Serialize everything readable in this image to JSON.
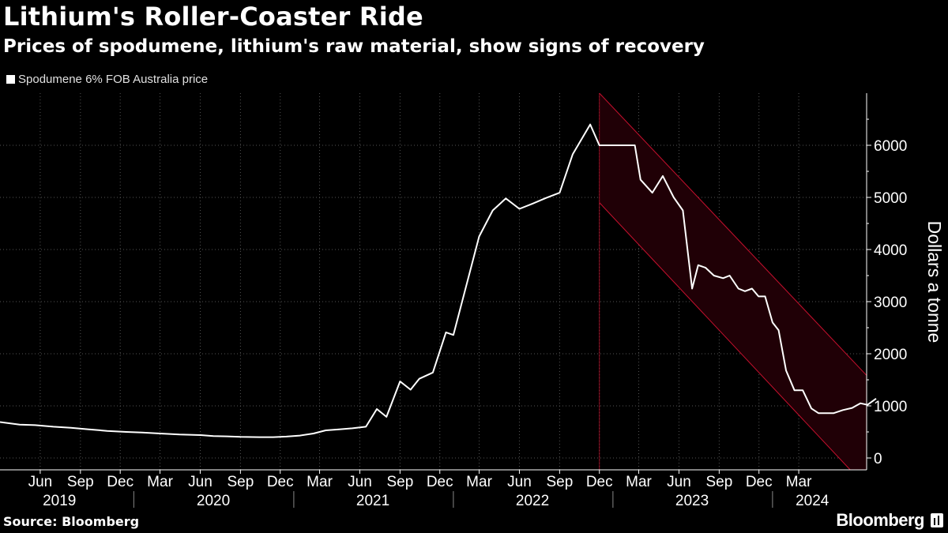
{
  "header": {
    "title": "Lithium's Roller-Coaster Ride",
    "subtitle": "Prices of spodumene, lithium's raw material, show signs of recovery"
  },
  "footer": {
    "source": "Source: Bloomberg",
    "brand": "Bloomberg"
  },
  "colors": {
    "background": "#000000",
    "line": "#ffffff",
    "channel_fill": "#200006",
    "channel_edge": "#c8102e"
  },
  "chart_data": {
    "type": "line",
    "title": "Lithium's Roller-Coaster Ride",
    "subtitle": "Prices of spodumene, lithium's raw material, show signs of recovery",
    "ylabel": "Dollars a tonne",
    "ylim": [
      -200,
      7000
    ],
    "yticks": [
      0,
      1000,
      2000,
      3000,
      4000,
      5000,
      6000
    ],
    "xlim": [
      "2019-03-01",
      "2024-06-01"
    ],
    "x_month_ticks": [
      {
        "date": "2019-06-01",
        "label": "Jun"
      },
      {
        "date": "2019-09-01",
        "label": "Sep"
      },
      {
        "date": "2019-12-01",
        "label": "Dec"
      },
      {
        "date": "2020-03-01",
        "label": "Mar"
      },
      {
        "date": "2020-06-01",
        "label": "Jun"
      },
      {
        "date": "2020-09-01",
        "label": "Sep"
      },
      {
        "date": "2020-12-01",
        "label": "Dec"
      },
      {
        "date": "2021-03-01",
        "label": "Mar"
      },
      {
        "date": "2021-06-01",
        "label": "Jun"
      },
      {
        "date": "2021-09-01",
        "label": "Sep"
      },
      {
        "date": "2021-12-01",
        "label": "Dec"
      },
      {
        "date": "2022-03-01",
        "label": "Mar"
      },
      {
        "date": "2022-06-01",
        "label": "Jun"
      },
      {
        "date": "2022-09-01",
        "label": "Sep"
      },
      {
        "date": "2022-12-01",
        "label": "Dec"
      },
      {
        "date": "2023-03-01",
        "label": "Mar"
      },
      {
        "date": "2023-06-01",
        "label": "Jun"
      },
      {
        "date": "2023-09-01",
        "label": "Sep"
      },
      {
        "date": "2023-12-01",
        "label": "Dec"
      },
      {
        "date": "2024-03-01",
        "label": "Mar"
      }
    ],
    "x_year_labels": [
      {
        "date": "2019-07-15",
        "label": "2019"
      },
      {
        "date": "2020-07-01",
        "label": "2020"
      },
      {
        "date": "2021-07-01",
        "label": "2021"
      },
      {
        "date": "2022-07-01",
        "label": "2022"
      },
      {
        "date": "2023-07-01",
        "label": "2023"
      },
      {
        "date": "2024-04-01",
        "label": "2024"
      }
    ],
    "x_year_separators": [
      "2020-01-01",
      "2021-01-01",
      "2022-01-01",
      "2023-01-01",
      "2024-01-01"
    ],
    "grid": true,
    "legend": "top-left",
    "series": [
      {
        "name": "Spodumene 6% FOB Australia price",
        "points": [
          [
            "2019-03-01",
            690
          ],
          [
            "2019-04-15",
            640
          ],
          [
            "2019-05-20",
            630
          ],
          [
            "2019-07-01",
            600
          ],
          [
            "2019-08-10",
            580
          ],
          [
            "2019-09-20",
            550
          ],
          [
            "2019-11-01",
            520
          ],
          [
            "2019-12-15",
            500
          ],
          [
            "2020-01-20",
            490
          ],
          [
            "2020-03-01",
            470
          ],
          [
            "2020-04-15",
            450
          ],
          [
            "2020-06-01",
            440
          ],
          [
            "2020-07-01",
            420
          ],
          [
            "2020-08-01",
            415
          ],
          [
            "2020-09-01",
            405
          ],
          [
            "2020-10-15",
            400
          ],
          [
            "2020-11-15",
            400
          ],
          [
            "2020-12-15",
            410
          ],
          [
            "2021-01-15",
            430
          ],
          [
            "2021-02-15",
            470
          ],
          [
            "2021-03-15",
            530
          ],
          [
            "2021-04-15",
            550
          ],
          [
            "2021-05-15",
            570
          ],
          [
            "2021-06-15",
            600
          ],
          [
            "2021-07-10",
            940
          ],
          [
            "2021-08-01",
            790
          ],
          [
            "2021-09-01",
            1470
          ],
          [
            "2021-09-25",
            1310
          ],
          [
            "2021-10-15",
            1520
          ],
          [
            "2021-11-15",
            1640
          ],
          [
            "2021-12-15",
            2410
          ],
          [
            "2022-01-01",
            2360
          ],
          [
            "2022-02-01",
            3350
          ],
          [
            "2022-03-01",
            4250
          ],
          [
            "2022-04-01",
            4750
          ],
          [
            "2022-05-01",
            4980
          ],
          [
            "2022-06-01",
            4780
          ],
          [
            "2022-07-01",
            4880
          ],
          [
            "2022-08-01",
            4990
          ],
          [
            "2022-09-01",
            5090
          ],
          [
            "2022-10-01",
            5830
          ],
          [
            "2022-11-10",
            6400
          ],
          [
            "2022-12-01",
            6000
          ],
          [
            "2023-01-01",
            6000
          ],
          [
            "2023-02-01",
            6000
          ],
          [
            "2023-02-20",
            6000
          ],
          [
            "2023-03-05",
            5340
          ],
          [
            "2023-04-01",
            5090
          ],
          [
            "2023-04-25",
            5410
          ],
          [
            "2023-05-20",
            5000
          ],
          [
            "2023-06-10",
            4750
          ],
          [
            "2023-07-01",
            3250
          ],
          [
            "2023-07-15",
            3700
          ],
          [
            "2023-08-01",
            3650
          ],
          [
            "2023-08-20",
            3500
          ],
          [
            "2023-09-10",
            3450
          ],
          [
            "2023-09-25",
            3500
          ],
          [
            "2023-10-15",
            3250
          ],
          [
            "2023-10-30",
            3200
          ],
          [
            "2023-11-15",
            3250
          ],
          [
            "2023-11-30",
            3100
          ],
          [
            "2023-12-15",
            3100
          ],
          [
            "2024-01-01",
            2600
          ],
          [
            "2024-01-15",
            2450
          ],
          [
            "2024-02-01",
            1680
          ],
          [
            "2024-02-20",
            1300
          ],
          [
            "2024-03-10",
            1300
          ],
          [
            "2024-03-30",
            950
          ],
          [
            "2024-04-15",
            860
          ],
          [
            "2024-05-01",
            860
          ],
          [
            "2024-05-20",
            860
          ],
          [
            "2024-06-10",
            920
          ],
          [
            "2024-07-01",
            960
          ],
          [
            "2024-07-20",
            1050
          ],
          [
            "2024-08-05",
            1020
          ],
          [
            "2024-08-25",
            1140
          ]
        ]
      }
    ],
    "channel": {
      "start_date": "2022-12-01",
      "end_date": "2024-09-10",
      "upper": [
        7000,
        1250
      ],
      "lower": [
        4900,
        -900
      ]
    }
  }
}
